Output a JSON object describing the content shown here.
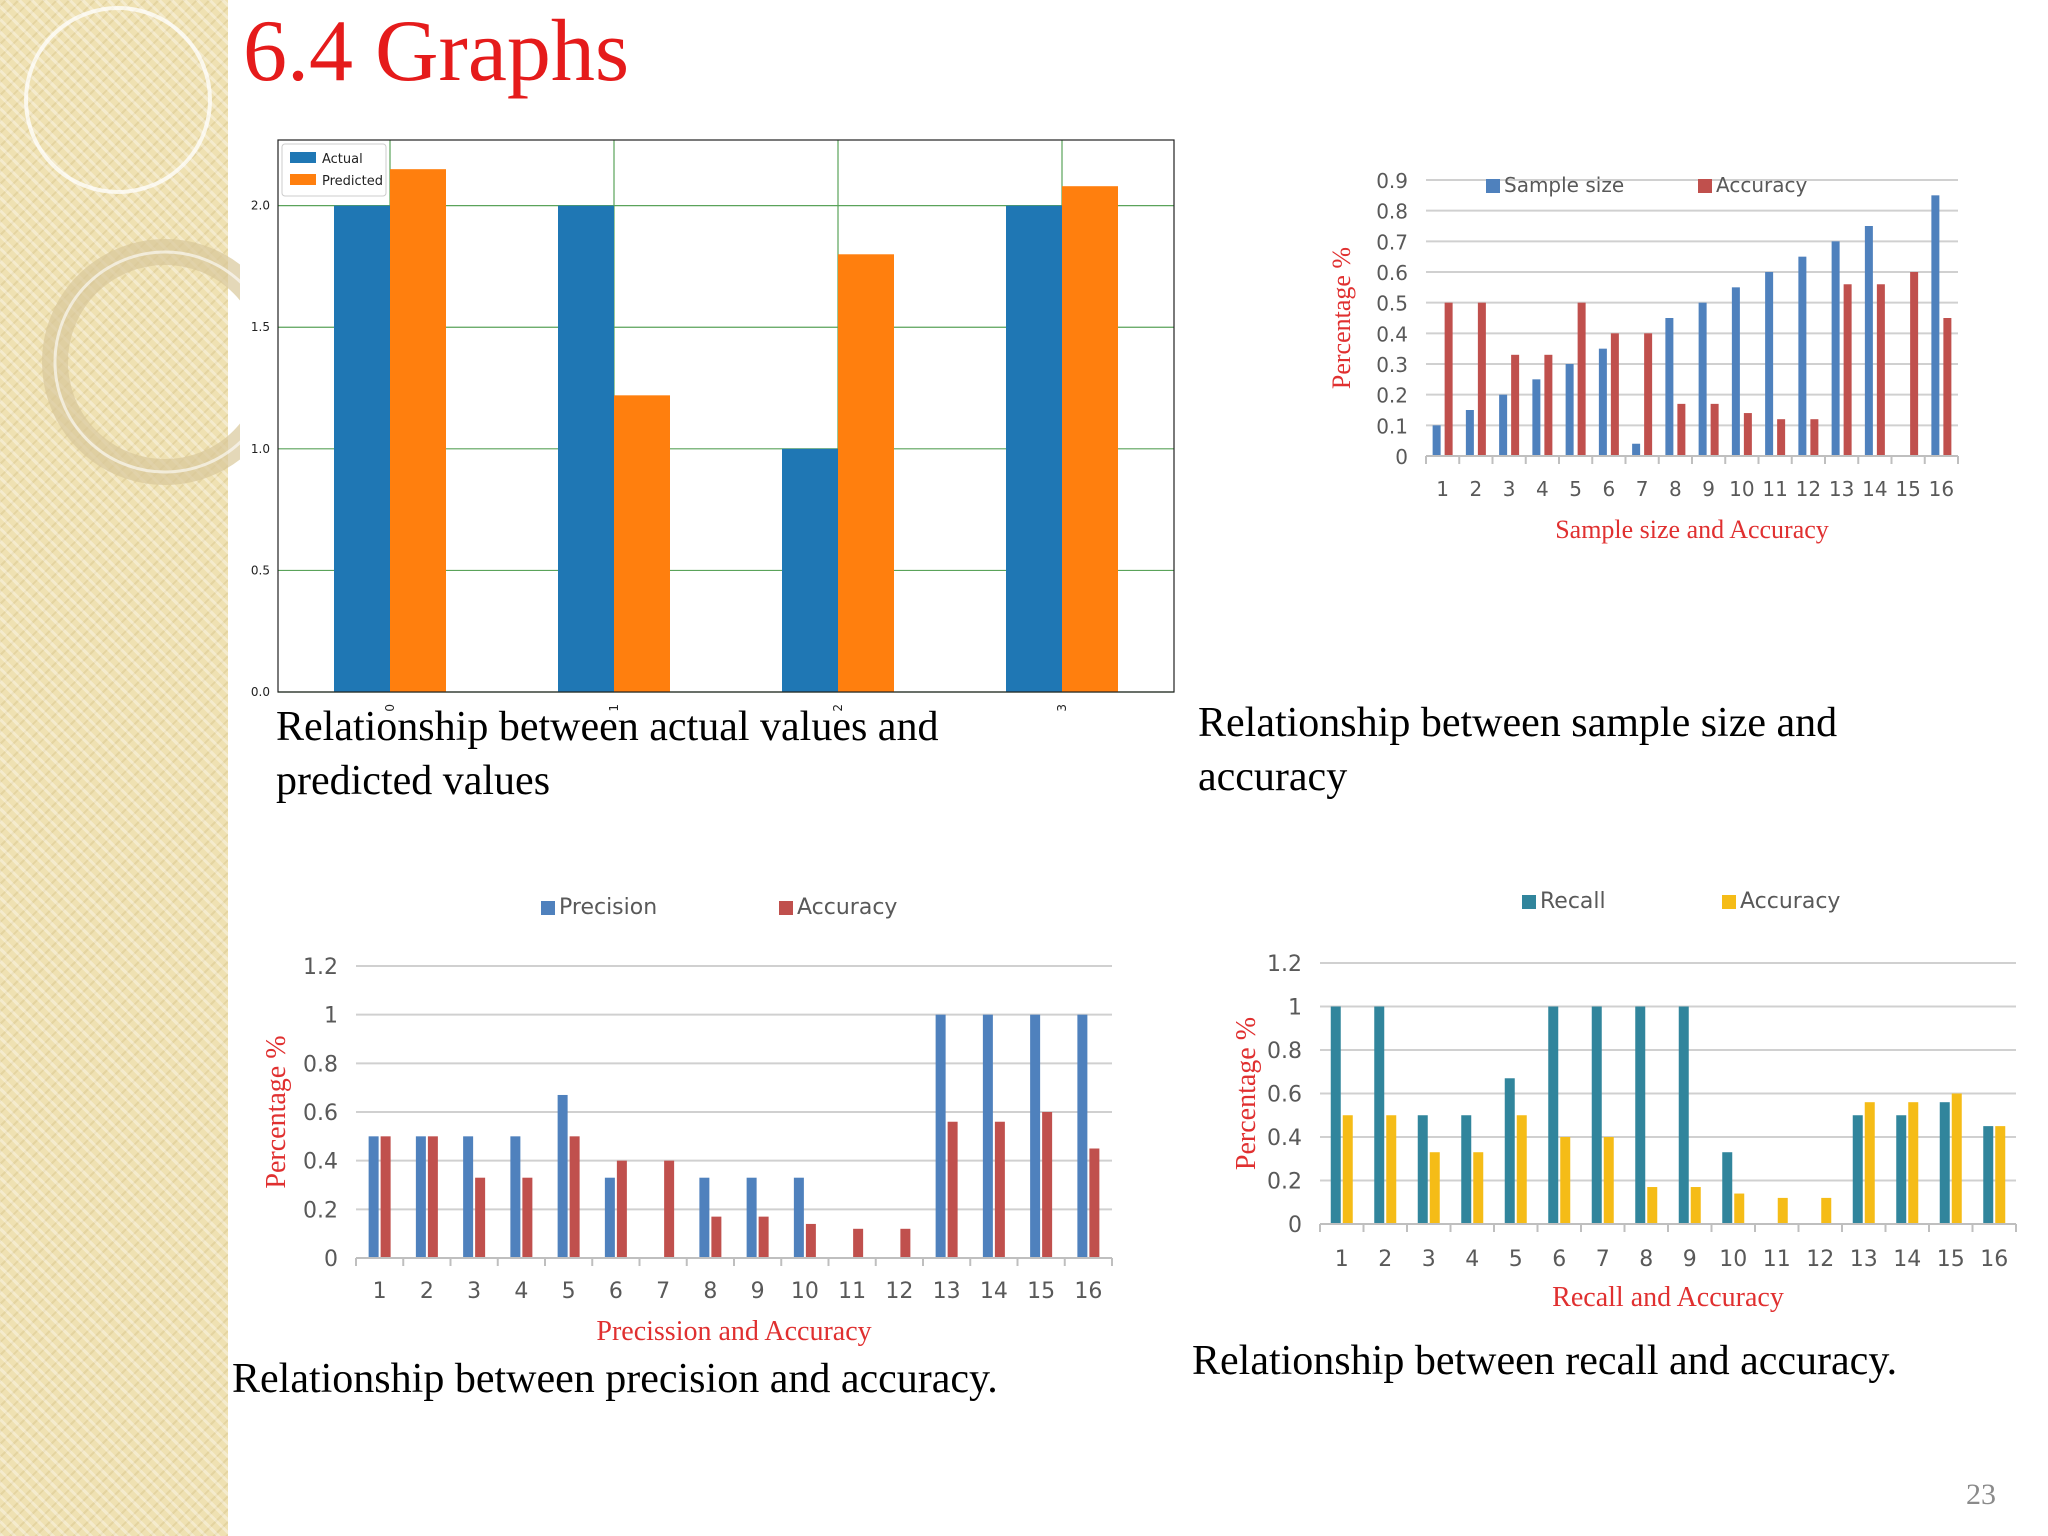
{
  "slide": {
    "title": "6.4 Graphs",
    "page_number": "23"
  },
  "captions": {
    "c1": "Relationship between actual values and predicted values",
    "c2": "Relationship between sample size and accuracy",
    "c3": "Relationship between precision and accuracy.",
    "c4": "Relationship between recall and accuracy."
  },
  "chart_data": [
    {
      "type": "bar",
      "title": "",
      "categories": [
        "0",
        "1",
        "2",
        "3"
      ],
      "series": [
        {
          "name": "Actual",
          "color": "#1f77b4",
          "values": [
            2.0,
            2.0,
            1.0,
            2.0
          ]
        },
        {
          "name": "Predicted",
          "color": "#ff7f0e",
          "values": [
            2.15,
            1.22,
            1.8,
            2.08
          ]
        }
      ],
      "yticks": [
        "0.0",
        "0.5",
        "1.0",
        "1.5",
        "2.0"
      ],
      "ylim": [
        0,
        2.27
      ],
      "grid": true,
      "legend": "top-left",
      "xlabel": "",
      "ylabel": ""
    },
    {
      "type": "bar",
      "title": "Sample size and Accuracy",
      "ylabel": "Percentage %",
      "xlabel": "",
      "categories": [
        "1",
        "2",
        "3",
        "4",
        "5",
        "6",
        "7",
        "8",
        "9",
        "10",
        "11",
        "12",
        "13",
        "14",
        "15",
        "16"
      ],
      "series": [
        {
          "name": "Sample size",
          "color": "#4f81bd",
          "values": [
            0.1,
            0.15,
            0.2,
            0.25,
            0.3,
            0.35,
            0.04,
            0.45,
            0.5,
            0.55,
            0.6,
            0.65,
            0.7,
            0.75,
            0.0,
            0.85
          ]
        },
        {
          "name": "Accuracy",
          "color": "#c0504d",
          "values": [
            0.5,
            0.5,
            0.33,
            0.33,
            0.5,
            0.4,
            0.4,
            0.17,
            0.17,
            0.14,
            0.12,
            0.12,
            0.56,
            0.56,
            0.6,
            0.45
          ]
        }
      ],
      "yticks": [
        "0",
        "0.1",
        "0.2",
        "0.3",
        "0.4",
        "0.5",
        "0.6",
        "0.7",
        "0.8",
        "0.9"
      ],
      "ylim": [
        0,
        0.9
      ],
      "grid": true,
      "legend": "top"
    },
    {
      "type": "bar",
      "title": "Precission and Accuracy",
      "ylabel": "Percentage %",
      "xlabel": "",
      "categories": [
        "1",
        "2",
        "3",
        "4",
        "5",
        "6",
        "7",
        "8",
        "9",
        "10",
        "11",
        "12",
        "13",
        "14",
        "15",
        "16"
      ],
      "series": [
        {
          "name": "Precision",
          "color": "#4f81bd",
          "values": [
            0.5,
            0.5,
            0.5,
            0.5,
            0.67,
            0.33,
            0.0,
            0.33,
            0.33,
            0.33,
            0.0,
            0.0,
            1.0,
            1.0,
            1.0,
            1.0
          ]
        },
        {
          "name": "Accuracy",
          "color": "#c0504d",
          "values": [
            0.5,
            0.5,
            0.33,
            0.33,
            0.5,
            0.4,
            0.4,
            0.17,
            0.17,
            0.14,
            0.12,
            0.12,
            0.56,
            0.56,
            0.6,
            0.45
          ]
        }
      ],
      "yticks": [
        "0",
        "0.2",
        "0.4",
        "0.6",
        "0.8",
        "1",
        "1.2"
      ],
      "ylim": [
        0,
        1.2
      ],
      "grid": true,
      "legend": "top"
    },
    {
      "type": "bar",
      "title": "Recall and Accuracy",
      "ylabel": "Percentage %",
      "xlabel": "",
      "categories": [
        "1",
        "2",
        "3",
        "4",
        "5",
        "6",
        "7",
        "8",
        "9",
        "10",
        "11",
        "12",
        "13",
        "14",
        "15",
        "16"
      ],
      "series": [
        {
          "name": "Recall",
          "color": "#31859c",
          "values": [
            1.0,
            1.0,
            0.5,
            0.5,
            0.67,
            1.0,
            1.0,
            1.0,
            1.0,
            0.33,
            0.0,
            0.0,
            0.5,
            0.5,
            0.56,
            0.45
          ]
        },
        {
          "name": "Accuracy",
          "color": "#f5bc17",
          "values": [
            0.5,
            0.5,
            0.33,
            0.33,
            0.5,
            0.4,
            0.4,
            0.17,
            0.17,
            0.14,
            0.12,
            0.12,
            0.56,
            0.56,
            0.6,
            0.45
          ]
        }
      ],
      "yticks": [
        "0",
        "0.2",
        "0.4",
        "0.6",
        "0.8",
        "1",
        "1.2"
      ],
      "ylim": [
        0,
        1.2
      ],
      "grid": true,
      "legend": "top"
    }
  ]
}
